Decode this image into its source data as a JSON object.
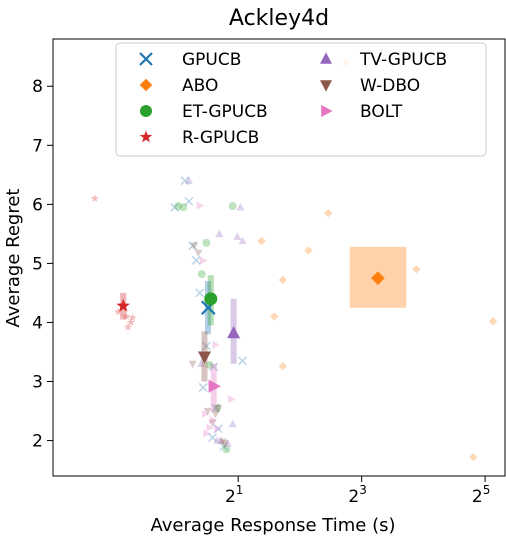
{
  "chart_data": {
    "type": "scatter",
    "title": "Ackley4d",
    "xlabel": "Average Response Time (s)",
    "ylabel": "Average Regret",
    "x_scale": "log2",
    "xlim": [
      0.25,
      40
    ],
    "ylim": [
      1.4,
      8.8
    ],
    "x_ticks": [
      {
        "value": 2,
        "base": "2",
        "exp": "1"
      },
      {
        "value": 8,
        "base": "2",
        "exp": "3"
      },
      {
        "value": 32,
        "base": "2",
        "exp": "5"
      }
    ],
    "y_ticks": [
      2,
      3,
      4,
      5,
      6,
      7,
      8
    ],
    "legend": {
      "placement": "top-right",
      "columns": 2
    },
    "series": [
      {
        "name": "GPUCB",
        "marker": "x",
        "color": "#1f77b4",
        "mean": {
          "x": 1.43,
          "y": 4.25
        },
        "err": {
          "x": [
            1.38,
            1.47
          ],
          "y": [
            3.8,
            4.7
          ]
        },
        "runs": [
          [
            1.1,
            6.4
          ],
          [
            1.15,
            6.05
          ],
          [
            0.98,
            5.95
          ],
          [
            1.2,
            5.3
          ],
          [
            1.25,
            5.05
          ],
          [
            1.3,
            4.5
          ],
          [
            1.4,
            3.6
          ],
          [
            1.52,
            3.25
          ],
          [
            1.35,
            2.9
          ],
          [
            2.1,
            3.35
          ],
          [
            1.55,
            2.55
          ],
          [
            1.6,
            2.2
          ],
          [
            1.5,
            2.05
          ],
          [
            1.7,
            1.9
          ]
        ]
      },
      {
        "name": "ABO",
        "marker": "D",
        "color": "#ff7f0e",
        "mean": {
          "x": 9.6,
          "y": 4.75
        },
        "err": {
          "x": [
            7.0,
            13.2
          ],
          "y": [
            4.25,
            5.28
          ]
        },
        "runs": [
          [
            6.7,
            8.4
          ],
          [
            5.5,
            5.85
          ],
          [
            2.6,
            5.38
          ],
          [
            4.4,
            5.22
          ],
          [
            3.3,
            4.72
          ],
          [
            3.0,
            4.1
          ],
          [
            3.3,
            3.26
          ],
          [
            14.8,
            4.9
          ],
          [
            28,
            1.72
          ],
          [
            35,
            4.02
          ]
        ]
      },
      {
        "name": "ET-GPUCB",
        "marker": "o",
        "color": "#2ca02c",
        "mean": {
          "x": 1.47,
          "y": 4.4
        },
        "err": {
          "x": [
            1.42,
            1.52
          ],
          "y": [
            3.95,
            4.8
          ]
        },
        "runs": [
          [
            1.02,
            5.97
          ],
          [
            1.08,
            5.95
          ],
          [
            1.4,
            5.35
          ],
          [
            1.33,
            4.82
          ],
          [
            1.45,
            3.28
          ],
          [
            1.58,
            2.55
          ],
          [
            1.75,
            1.85
          ],
          [
            1.88,
            5.97
          ]
        ]
      },
      {
        "name": "R-GPUCB",
        "marker": "*",
        "color": "#d62728",
        "mean": {
          "x": 0.55,
          "y": 4.28
        },
        "err": {
          "x": [
            0.54,
            0.56
          ],
          "y": [
            4.05,
            4.5
          ]
        },
        "runs": [
          [
            0.4,
            6.1
          ],
          [
            0.52,
            4.18
          ],
          [
            0.57,
            4.1
          ],
          [
            0.6,
            4.0
          ],
          [
            0.58,
            3.92
          ],
          [
            0.61,
            4.08
          ]
        ]
      },
      {
        "name": "TV-GPUCB",
        "marker": "^",
        "color": "#9467bd",
        "mean": {
          "x": 1.9,
          "y": 3.82
        },
        "err": {
          "x": [
            1.86,
            1.94
          ],
          "y": [
            3.3,
            4.4
          ]
        },
        "runs": [
          [
            1.15,
            6.4
          ],
          [
            1.62,
            5.5
          ],
          [
            2.05,
            5.95
          ],
          [
            1.98,
            5.45
          ],
          [
            2.1,
            5.38
          ],
          [
            1.32,
            3.3
          ],
          [
            1.58,
            2.0
          ],
          [
            1.65,
            2.0
          ],
          [
            1.78,
            1.95
          ],
          [
            1.88,
            2.28
          ]
        ]
      },
      {
        "name": "W-DBO",
        "marker": "v",
        "color": "#8c564b",
        "mean": {
          "x": 1.37,
          "y": 3.42
        },
        "err": {
          "x": [
            1.34,
            1.4
          ],
          "y": [
            3.0,
            3.85
          ]
        },
        "runs": [
          [
            1.22,
            5.3
          ],
          [
            1.28,
            5.18
          ],
          [
            1.2,
            3.3
          ],
          [
            1.42,
            2.5
          ],
          [
            1.55,
            2.45
          ],
          [
            1.5,
            2.3
          ],
          [
            1.6,
            2.55
          ],
          [
            1.68,
            1.98
          ],
          [
            1.72,
            1.95
          ]
        ]
      },
      {
        "name": "BOLT",
        "marker": ">",
        "color": "#e377c2",
        "mean": {
          "x": 1.52,
          "y": 2.92
        },
        "err": {
          "x": [
            1.48,
            1.56
          ],
          "y": [
            2.5,
            3.3
          ]
        },
        "runs": [
          [
            1.3,
            5.98
          ],
          [
            1.35,
            5.05
          ],
          [
            1.55,
            3.62
          ],
          [
            1.85,
            2.7
          ],
          [
            1.38,
            2.45
          ],
          [
            1.45,
            2.22
          ],
          [
            1.4,
            2.12
          ],
          [
            1.58,
            2.2
          ],
          [
            1.5,
            2.35
          ]
        ]
      }
    ]
  }
}
